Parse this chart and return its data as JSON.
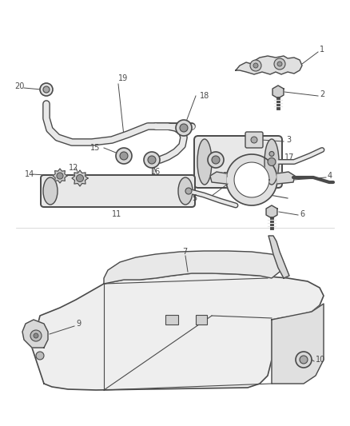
{
  "bg_color": "#ffffff",
  "line_color": "#4a4a4a",
  "text_color": "#4a4a4a",
  "fig_width": 4.38,
  "fig_height": 5.33,
  "dpi": 100
}
